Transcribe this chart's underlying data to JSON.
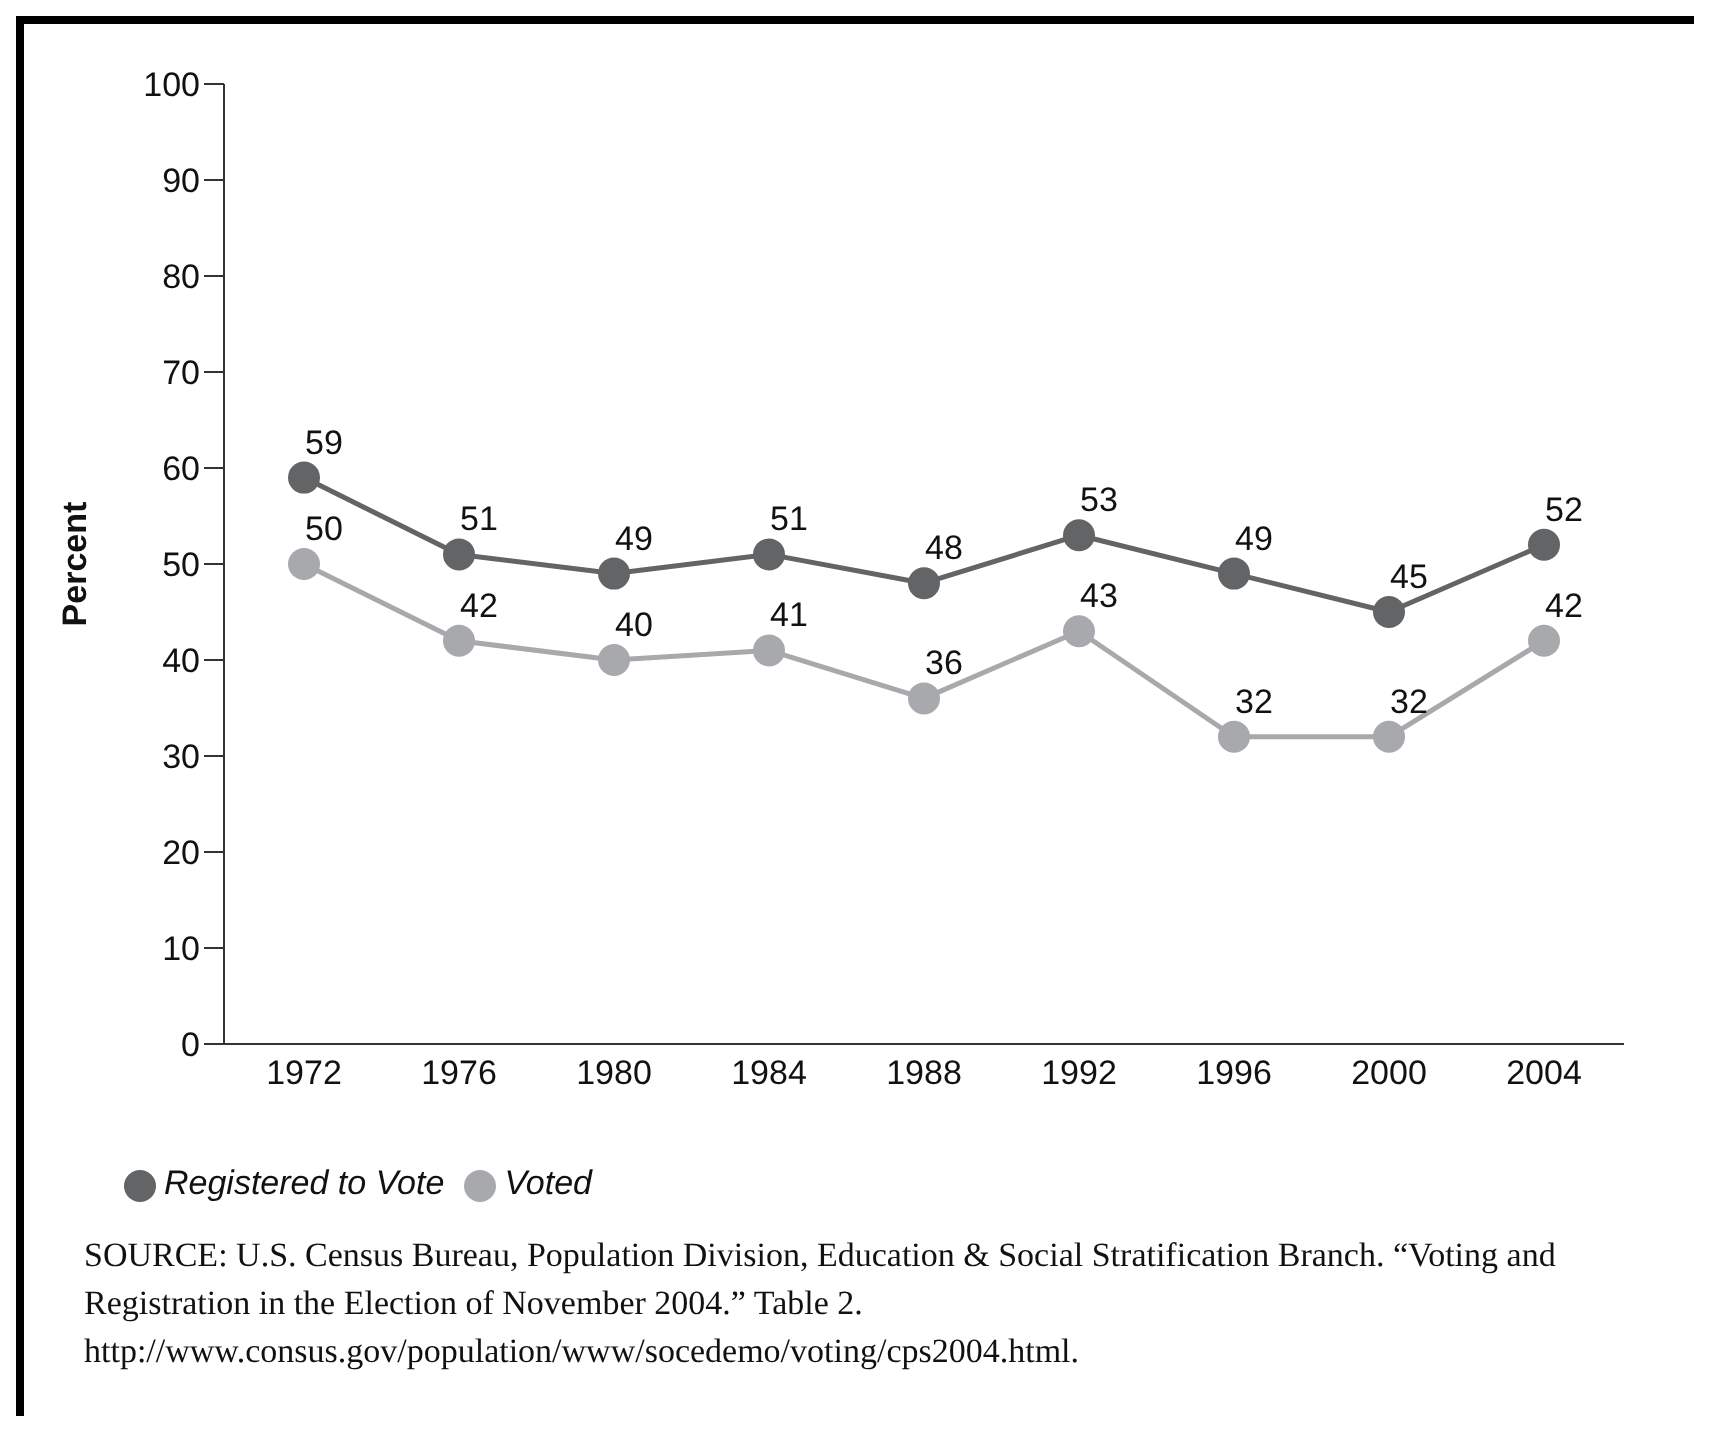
{
  "chart_data": {
    "type": "line",
    "ylabel": "Percent",
    "categories": [
      "1972",
      "1976",
      "1980",
      "1984",
      "1988",
      "1992",
      "1996",
      "2000",
      "2004"
    ],
    "series": [
      {
        "name": "Voted",
        "color": "#a7a9ac",
        "values": [
          50,
          42,
          40,
          41,
          36,
          43,
          32,
          32,
          42
        ]
      },
      {
        "name": "Registered to Vote",
        "color": "#636466",
        "values": [
          59,
          51,
          49,
          51,
          48,
          53,
          49,
          45,
          52
        ]
      }
    ],
    "ylim": [
      0,
      100
    ],
    "yticks": [
      0,
      10,
      20,
      30,
      40,
      50,
      60,
      70,
      80,
      90,
      100
    ],
    "grid": false,
    "legend": "bottom",
    "marker": "circle",
    "line_style": "solid",
    "data_labels": true,
    "annotations": [
      "SOURCE: U.S. Census Bureau, Population Division, Education & Social Stratification Branch. “Voting and Registration in the Election of November 2004.” Table 2. http://www.consus.gov/population/www/socedemo/voting/cps2004.html."
    ]
  }
}
